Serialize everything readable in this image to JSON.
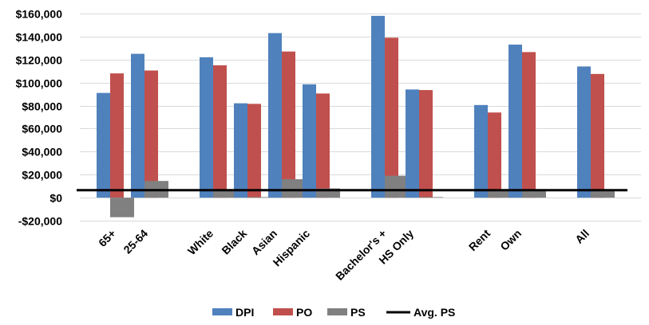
{
  "chart_data": {
    "type": "bar",
    "categories": [
      "65+",
      "25-64",
      "White",
      "Black",
      "Asian",
      "Hispanic",
      "Bachelor's +",
      "HS Only",
      "Rent",
      "Own",
      "All"
    ],
    "series": [
      {
        "name": "DPI",
        "color": "#4f81bd",
        "values": [
          91000,
          125000,
          122000,
          82000,
          143000,
          98500,
          158000,
          94000,
          80500,
          133000,
          114000
        ]
      },
      {
        "name": "PO",
        "color": "#c0504d",
        "values": [
          108000,
          110500,
          115000,
          81500,
          127000,
          90500,
          139000,
          93500,
          74000,
          126500,
          107500
        ]
      },
      {
        "name": "PS",
        "color": "#808080",
        "values": [
          -17000,
          14500,
          7000,
          500,
          16000,
          8000,
          19000,
          500,
          6500,
          6500,
          6500
        ]
      }
    ],
    "reference_line": {
      "name": "Avg. PS",
      "value": 6500,
      "color": "#000000"
    },
    "ylim": [
      -20000,
      160000
    ],
    "yticks": [
      -20000,
      0,
      20000,
      40000,
      60000,
      80000,
      100000,
      120000,
      140000,
      160000
    ],
    "ytick_labels": [
      "-$20,000",
      "$0",
      "$20,000",
      "$40,000",
      "$60,000",
      "$80,000",
      "$100,000",
      "$120,000",
      "$140,000",
      "$160,000"
    ],
    "grid": true,
    "legend_position": "bottom",
    "legend": [
      "DPI",
      "PO",
      "PS",
      "Avg. PS"
    ],
    "title": "",
    "xlabel": "",
    "ylabel": ""
  }
}
